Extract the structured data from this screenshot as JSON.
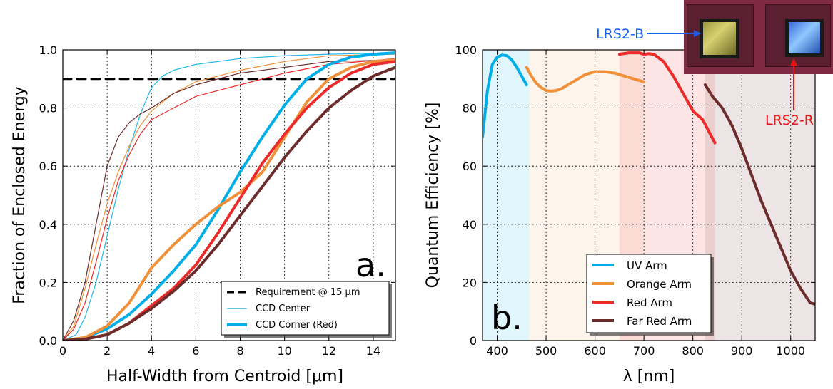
{
  "figure": {
    "left_panel_label": "a.",
    "right_panel_label": "b."
  },
  "chart_data": [
    {
      "type": "line",
      "panel": "a.",
      "xlabel": "Half-Width from Centroid [μm]",
      "ylabel": "Fraction of Enclosed Energy",
      "xlim": [
        0,
        15
      ],
      "ylim": [
        0,
        1.0
      ],
      "xticks": [
        "0",
        "2",
        "4",
        "6",
        "8",
        "10",
        "12",
        "14"
      ],
      "yticks": [
        "0.0",
        "0.2",
        "0.4",
        "0.6",
        "0.8",
        "1.0"
      ],
      "grid": true,
      "legend_position": "bottom-right",
      "legend": [
        {
          "label": "Requirement @ 15 μm",
          "color": "#000000",
          "style": "dashed"
        },
        {
          "label": "CCD Center",
          "color": "#00aee8",
          "style": "thin"
        },
        {
          "label": "CCD Corner (Red)",
          "color": "#00aee8",
          "style": "thick"
        }
      ],
      "series": [
        {
          "name": "Requirement @ 15 μm",
          "color": "#000000",
          "width": 3,
          "dash": "12,8",
          "x": [
            0,
            15
          ],
          "y": [
            0.9,
            0.9
          ]
        },
        {
          "color": "#1fb8ec",
          "width": 1.2,
          "x": [
            0,
            0.6,
            1,
            1.5,
            2,
            2.5,
            3,
            3.5,
            4,
            4.5,
            5,
            6,
            8,
            10,
            12,
            15
          ],
          "y": [
            0,
            0.02,
            0.08,
            0.2,
            0.36,
            0.52,
            0.66,
            0.78,
            0.87,
            0.91,
            0.93,
            0.95,
            0.97,
            0.98,
            0.985,
            0.99
          ]
        },
        {
          "color": "#f0913a",
          "width": 1.2,
          "x": [
            0,
            0.5,
            1,
            1.5,
            2,
            2.5,
            3,
            3.5,
            4,
            5,
            6,
            8,
            10,
            12,
            15
          ],
          "y": [
            0,
            0.05,
            0.18,
            0.33,
            0.47,
            0.58,
            0.67,
            0.74,
            0.79,
            0.85,
            0.89,
            0.93,
            0.96,
            0.98,
            0.985
          ]
        },
        {
          "color": "#ec2a2a",
          "width": 1.2,
          "x": [
            0,
            0.5,
            1,
            1.5,
            2,
            2.5,
            3,
            3.5,
            4,
            5,
            6,
            7,
            8,
            10,
            12,
            15
          ],
          "y": [
            0,
            0.04,
            0.13,
            0.27,
            0.42,
            0.55,
            0.64,
            0.71,
            0.76,
            0.8,
            0.84,
            0.86,
            0.88,
            0.92,
            0.95,
            0.97
          ]
        },
        {
          "color": "#6d2c2c",
          "width": 1.2,
          "x": [
            0,
            0.5,
            1,
            1.5,
            2,
            2.5,
            3,
            3.5,
            4,
            5,
            6,
            8,
            10,
            12,
            15
          ],
          "y": [
            0,
            0.07,
            0.2,
            0.4,
            0.6,
            0.7,
            0.75,
            0.78,
            0.8,
            0.85,
            0.88,
            0.92,
            0.94,
            0.96,
            0.965
          ]
        },
        {
          "color": "#00aee8",
          "width": 4,
          "x": [
            0,
            1,
            2,
            3,
            4,
            5,
            6,
            7,
            8,
            9,
            10,
            11,
            12,
            13,
            14,
            15
          ],
          "y": [
            0,
            0.01,
            0.04,
            0.09,
            0.16,
            0.24,
            0.33,
            0.45,
            0.58,
            0.7,
            0.81,
            0.9,
            0.95,
            0.975,
            0.985,
            0.99
          ]
        },
        {
          "color": "#f0913a",
          "width": 4,
          "x": [
            0,
            1,
            2,
            3,
            4,
            5,
            6,
            7,
            8,
            9,
            10,
            11,
            12,
            13,
            14,
            15
          ],
          "y": [
            0,
            0.01,
            0.05,
            0.13,
            0.25,
            0.33,
            0.4,
            0.46,
            0.51,
            0.58,
            0.7,
            0.82,
            0.9,
            0.94,
            0.96,
            0.965
          ]
        },
        {
          "color": "#ec2a2a",
          "width": 4,
          "x": [
            0,
            1,
            2,
            3,
            4,
            5,
            6,
            7,
            8,
            9,
            10,
            11,
            12,
            13,
            14,
            15
          ],
          "y": [
            0,
            0.005,
            0.02,
            0.06,
            0.12,
            0.18,
            0.26,
            0.37,
            0.49,
            0.61,
            0.71,
            0.8,
            0.87,
            0.92,
            0.95,
            0.96
          ]
        },
        {
          "color": "#6d2c2c",
          "width": 4,
          "x": [
            0,
            1,
            2,
            3,
            4,
            5,
            6,
            7,
            8,
            9,
            10,
            11,
            12,
            13,
            14,
            15
          ],
          "y": [
            0,
            0.005,
            0.02,
            0.06,
            0.11,
            0.17,
            0.24,
            0.33,
            0.43,
            0.53,
            0.63,
            0.72,
            0.8,
            0.86,
            0.91,
            0.94
          ]
        }
      ]
    },
    {
      "type": "line",
      "panel": "b.",
      "xlabel": "λ [nm]",
      "ylabel": "Quantum Efficiency [%]",
      "xlim": [
        370,
        1050
      ],
      "ylim": [
        0,
        100
      ],
      "xticks": [
        "400",
        "500",
        "600",
        "700",
        "800",
        "900",
        "1000"
      ],
      "yticks": [
        "0",
        "20",
        "40",
        "60",
        "80",
        "100"
      ],
      "grid": true,
      "legend_position": "bottom-center",
      "bands": [
        {
          "from": 370,
          "to": 465,
          "color": "#00aee8",
          "opacity": 0.12
        },
        {
          "from": 465,
          "to": 700,
          "color": "#f0913a",
          "opacity": 0.1
        },
        {
          "from": 650,
          "to": 845,
          "color": "#ec2a2a",
          "opacity": 0.12
        },
        {
          "from": 825,
          "to": 1050,
          "color": "#6d2c2c",
          "opacity": 0.12
        }
      ],
      "series": [
        {
          "name": "UV Arm",
          "color": "#00aee8",
          "width": 4,
          "x": [
            370,
            380,
            390,
            400,
            410,
            420,
            430,
            440,
            450,
            460
          ],
          "y": [
            70,
            86,
            95,
            97.5,
            98.2,
            98,
            96.5,
            94,
            91,
            88
          ]
        },
        {
          "name": "Orange Arm",
          "color": "#f0913a",
          "width": 4,
          "x": [
            460,
            470,
            480,
            490,
            500,
            510,
            520,
            530,
            540,
            560,
            580,
            600,
            620,
            640,
            660,
            680,
            700
          ],
          "y": [
            94,
            91,
            88.5,
            87,
            86,
            85.8,
            86,
            86.5,
            87.5,
            89.5,
            91.5,
            92.5,
            92.5,
            92,
            91,
            90,
            89
          ]
        },
        {
          "name": "Red Arm",
          "color": "#ec2a2a",
          "width": 4,
          "x": [
            650,
            670,
            690,
            700,
            710,
            720,
            740,
            760,
            780,
            800,
            820,
            845
          ],
          "y": [
            98.5,
            99,
            99,
            98.5,
            98.7,
            98.5,
            96,
            91,
            85,
            79,
            76,
            68
          ]
        },
        {
          "name": "Far Red Arm",
          "color": "#6d2c2c",
          "width": 4,
          "x": [
            825,
            840,
            860,
            880,
            900,
            920,
            940,
            960,
            980,
            1000,
            1020,
            1040,
            1050
          ],
          "y": [
            88,
            84,
            80,
            74,
            66,
            57,
            48,
            40,
            32,
            24,
            18,
            13,
            12.5
          ]
        }
      ]
    }
  ],
  "photo": {
    "label_b": "LRS2-B",
    "label_r": "LRS2-R",
    "label_b_color": "#1a5ef0",
    "label_r_color": "#ee1111"
  }
}
